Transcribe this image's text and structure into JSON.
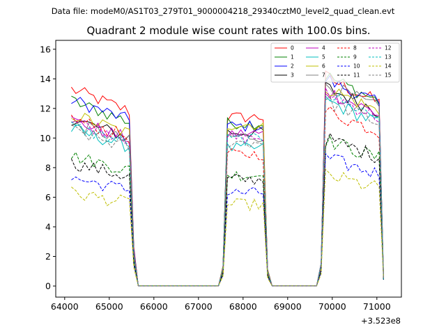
{
  "figure": {
    "suptitle": "Data file: modeM0/AS1T03_279T01_9000004218_29340cztM0_level2_quad_clean.evt",
    "title": "Quadrant 2 module wise count rates with 100.0s bins.",
    "x_offset_label": "+3.523e8"
  },
  "chart_data": {
    "type": "line",
    "title": "Quadrant 2 module wise count rates with 100.0s bins.",
    "xlabel": "",
    "ylabel": "",
    "x_offset": 352300000,
    "xlim": [
      63800,
      71550
    ],
    "ylim": [
      -0.75,
      16.6
    ],
    "x_ticks": [
      64000,
      65000,
      66000,
      67000,
      68000,
      69000,
      70000,
      71000
    ],
    "x_tick_labels": [
      "64000",
      "65000",
      "66000",
      "67000",
      "68000",
      "69000",
      "70000",
      "71000"
    ],
    "y_ticks": [
      0,
      2,
      4,
      6,
      8,
      10,
      12,
      14,
      16
    ],
    "y_tick_labels": [
      "0",
      "2",
      "4",
      "6",
      "8",
      "10",
      "12",
      "14",
      "16"
    ],
    "legend_position": "top-right",
    "segments": [
      {
        "start": 64150,
        "n": 15
      },
      {
        "start": 65650,
        "n": 19
      },
      {
        "start": 67550,
        "n": 11
      },
      {
        "start": 68650,
        "n": 12
      },
      {
        "start": 69850,
        "n": 14
      }
    ],
    "step": 100,
    "series": [
      {
        "name": "0",
        "color": "#ff0000",
        "dash": "solid",
        "levels": [
          13.3,
          11.4,
          12.6
        ]
      },
      {
        "name": "1",
        "color": "#008000",
        "dash": "solid",
        "levels": [
          12.5,
          11.0,
          12.7
        ]
      },
      {
        "name": "2",
        "color": "#0000ff",
        "dash": "solid",
        "levels": [
          12.6,
          10.8,
          12.5
        ]
      },
      {
        "name": "3",
        "color": "#000000",
        "dash": "solid",
        "levels": [
          11.3,
          10.4,
          12.0
        ]
      },
      {
        "name": "4",
        "color": "#bf00bf",
        "dash": "solid",
        "levels": [
          11.2,
          10.3,
          11.8
        ]
      },
      {
        "name": "5",
        "color": "#00bfbf",
        "dash": "solid",
        "levels": [
          10.6,
          9.3,
          11.2
        ]
      },
      {
        "name": "6",
        "color": "#bfbf00",
        "dash": "solid",
        "levels": [
          11.6,
          10.9,
          12.0
        ]
      },
      {
        "name": "7",
        "color": "#808080",
        "dash": "solid",
        "levels": [
          11.0,
          10.1,
          12.2
        ]
      },
      {
        "name": "8",
        "color": "#ff0000",
        "dash": "dashed",
        "levels": [
          11.3,
          8.9,
          10.6
        ]
      },
      {
        "name": "9",
        "color": "#008000",
        "dash": "dashed",
        "levels": [
          8.8,
          7.5,
          8.8
        ]
      },
      {
        "name": "10",
        "color": "#0000ff",
        "dash": "dashed",
        "levels": [
          7.3,
          6.3,
          7.7
        ]
      },
      {
        "name": "11",
        "color": "#000000",
        "dash": "dashed",
        "levels": [
          8.3,
          7.2,
          8.9
        ]
      },
      {
        "name": "12",
        "color": "#bf00bf",
        "dash": "dashed",
        "levels": [
          11.2,
          10.0,
          11.6
        ]
      },
      {
        "name": "13",
        "color": "#00bfbf",
        "dash": "dashed",
        "levels": [
          10.8,
          9.9,
          11.6
        ]
      },
      {
        "name": "14",
        "color": "#bfbf00",
        "dash": "dashed",
        "levels": [
          6.3,
          5.5,
          6.7
        ]
      },
      {
        "name": "15",
        "color": "#808080",
        "dash": "dashed",
        "levels": [
          10.5,
          9.7,
          11.2
        ]
      }
    ]
  }
}
